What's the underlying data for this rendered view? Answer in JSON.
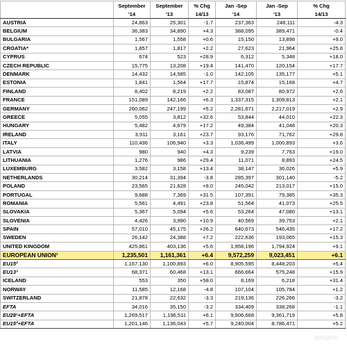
{
  "header": {
    "row1": [
      "",
      "September",
      "September",
      "% Chg",
      "Jan -Sep",
      "Jan -Sep",
      "% Chg"
    ],
    "row2": [
      "",
      "'14",
      "'13",
      "14/13",
      "'14",
      "'13",
      "14/13"
    ]
  },
  "rows": [
    {
      "name": "AUSTRIA",
      "sep14": "24,863",
      "sep13": "25,301",
      "chg": "-1.7",
      "ytd14": "237,363",
      "ytd13": "248,111",
      "ytdchg": "-4.3"
    },
    {
      "name": "BELGIUM",
      "sep14": "36,383",
      "sep13": "34,890",
      "chg": "+4.3",
      "ytd14": "388,095",
      "ytd13": "389,471",
      "ytdchg": "-0.4"
    },
    {
      "name": "BULGARIA",
      "sep14": "1,567",
      "sep13": "1,558",
      "chg": "+0.6",
      "ytd14": "15,150",
      "ytd13": "13,898",
      "ytdchg": "+9.0"
    },
    {
      "name": "CROATIA*",
      "sep14": "1,857",
      "sep13": "1,817",
      "chg": "+2.2",
      "ytd14": "27,623",
      "ytd13": "21,964",
      "ytdchg": "+25.8"
    },
    {
      "name": "CYPRUS",
      "sep14": "674",
      "sep13": "523",
      "chg": "+28.9",
      "ytd14": "6,312",
      "ytd13": "5,348",
      "ytdchg": "+18.0"
    },
    {
      "name": "CZECH REPUBLIC",
      "sep14": "15,775",
      "sep13": "13,208",
      "chg": "+19.4",
      "ytd14": "141,470",
      "ytd13": "120,154",
      "ytdchg": "+17.7"
    },
    {
      "name": "DENMARK",
      "sep14": "14,432",
      "sep13": "14,585",
      "chg": "-1.0",
      "ytd14": "142,105",
      "ytd13": "135,177",
      "ytdchg": "+5.1"
    },
    {
      "name": "ESTONIA",
      "sep14": "1,841",
      "sep13": "1,564",
      "chg": "+17.7",
      "ytd14": "15,874",
      "ytd13": "15,168",
      "ytdchg": "+4.7"
    },
    {
      "name": "FINLAND",
      "sep14": "8,402",
      "sep13": "8,219",
      "chg": "+2.2",
      "ytd14": "83,087",
      "ytd13": "80,972",
      "ytdchg": "+2.6"
    },
    {
      "name": "FRANCE",
      "sep14": "151,089",
      "sep13": "142,166",
      "chg": "+6.3",
      "ytd14": "1,337,315",
      "ytd13": "1,309,813",
      "ytdchg": "+2.1"
    },
    {
      "name": "GERMANY",
      "sep14": "260,062",
      "sep13": "247,199",
      "chg": "+5.2",
      "ytd14": "2,281,671",
      "ytd13": "2,217,019",
      "ytdchg": "+2.9"
    },
    {
      "name": "GREECE",
      "sep14": "5,055",
      "sep13": "3,812",
      "chg": "+32.6",
      "ytd14": "53,844",
      "ytd13": "44,010",
      "ytdchg": "+22.3"
    },
    {
      "name": "HUNGARY",
      "sep14": "5,482",
      "sep13": "4,679",
      "chg": "+17.2",
      "ytd14": "49,384",
      "ytd13": "41,048",
      "ytdchg": "+20.3"
    },
    {
      "name": "IRELAND",
      "sep14": "3,911",
      "sep13": "3,161",
      "chg": "+23.7",
      "ytd14": "93,176",
      "ytd13": "71,762",
      "ytdchg": "+29.8"
    },
    {
      "name": "ITALY",
      "sep14": "110,436",
      "sep13": "106,940",
      "chg": "+3.3",
      "ytd14": "1,036,499",
      "ytd13": "1,000,893",
      "ytdchg": "+3.6"
    },
    {
      "name": "LATVIA",
      "sep14": "980",
      "sep13": "940",
      "chg": "+4.3",
      "ytd14": "9,239",
      "ytd13": "7,763",
      "ytdchg": "+19.0"
    },
    {
      "name": "LITHUANIA",
      "sep14": "1,276",
      "sep13": "986",
      "chg": "+29.4",
      "ytd14": "11,071",
      "ytd13": "8,893",
      "ytdchg": "+24.5"
    },
    {
      "name": "LUXEMBURG",
      "sep14": "3,582",
      "sep13": "3,158",
      "chg": "+13.4",
      "ytd14": "38,147",
      "ytd13": "36,026",
      "ytdchg": "+5.9"
    },
    {
      "name": "NETHERLANDS",
      "sep14": "30,214",
      "sep13": "31,394",
      "chg": "-3.8",
      "ytd14": "285,397",
      "ytd13": "301,140",
      "ytdchg": "-5.2"
    },
    {
      "name": "POLAND",
      "sep14": "23,565",
      "sep13": "21,628",
      "chg": "+9.0",
      "ytd14": "245,042",
      "ytd13": "213,017",
      "ytdchg": "+15.0"
    },
    {
      "name": "PORTUGAL",
      "sep14": "9,688",
      "sep13": "7,369",
      "chg": "+31.5",
      "ytd14": "107,391",
      "ytd13": "79,385",
      "ytdchg": "+35.3"
    },
    {
      "name": "ROMANIA",
      "sep14": "5,561",
      "sep13": "4,491",
      "chg": "+23.8",
      "ytd14": "51,564",
      "ytd13": "41,073",
      "ytdchg": "+25.5"
    },
    {
      "name": "SLOVAKIA",
      "sep14": "5,367",
      "sep13": "5,094",
      "chg": "+5.6",
      "ytd14": "53,264",
      "ytd13": "47,080",
      "ytdchg": "+13.1"
    },
    {
      "name": "SLOVENIA",
      "sep14": "4,426",
      "sep13": "3,990",
      "chg": "+10.9",
      "ytd14": "40,569",
      "ytd13": "39,753",
      "ytdchg": "+2.1"
    },
    {
      "name": "SPAIN",
      "sep14": "57,010",
      "sep13": "45,175",
      "chg": "+26.2",
      "ytd14": "640,673",
      "ytd13": "546,435",
      "ytdchg": "+17.2"
    },
    {
      "name": "SWEDEN",
      "sep14": "26,142",
      "sep13": "24,388",
      "chg": "+7.2",
      "ytd14": "222,636",
      "ytd13": "193,065",
      "ytdchg": "+15.3"
    },
    {
      "name": "UNITED KINGDOM",
      "sep14": "425,861",
      "sep13": "403,136",
      "chg": "+5.6",
      "ytd14": "1,958,196",
      "ytd13": "1,794,924",
      "ytdchg": "+9.1"
    },
    {
      "name": "EUROPEAN UNION¹",
      "sep14": "1,235,501",
      "sep13": "1,161,361",
      "chg": "+6.4",
      "ytd14": "9,572,259",
      "ytd13": "9,023,451",
      "ytdchg": "+6.1",
      "style": "eu"
    },
    {
      "name": "EU15²",
      "sep14": "1,167,130",
      "sep13": "1,100,893",
      "chg": "+6.0",
      "ytd14": "8,905,595",
      "ytd13": "8,448,203",
      "ytdchg": "+5.4",
      "style": "agg"
    },
    {
      "name": "EU13³",
      "sep14": "68,371",
      "sep13": "60,468",
      "chg": "+13.1",
      "ytd14": "666,664",
      "ytd13": "575,248",
      "ytdchg": "+15.9",
      "style": "agg"
    },
    {
      "name": "ICELAND",
      "sep14": "553",
      "sep13": "350",
      "chg": "+58.0",
      "ytd14": "8,169",
      "ytd13": "6,218",
      "ytdchg": "+31.4",
      "style": "sep"
    },
    {
      "name": "NORWAY",
      "sep14": "11,585",
      "sep13": "12,168",
      "chg": "-4.8",
      "ytd14": "107,104",
      "ytd13": "105,784",
      "ytdchg": "+1.2"
    },
    {
      "name": "SWITZERLAND",
      "sep14": "21,878",
      "sep13": "22,632",
      "chg": "-3.3",
      "ytd14": "219,136",
      "ytd13": "226,266",
      "ytdchg": "-3.2"
    },
    {
      "name": "EFTA",
      "sep14": "34,016",
      "sep13": "35,150",
      "chg": "-3.2",
      "ytd14": "334,409",
      "ytd13": "338,268",
      "ytdchg": "-1.1",
      "style": "agg"
    },
    {
      "name": "EU28¹+EFTA",
      "sep14": "1,269,517",
      "sep13": "1,196,511",
      "chg": "+6.1",
      "ytd14": "9,906,668",
      "ytd13": "9,361,719",
      "ytdchg": "+5.8",
      "style": "agg"
    },
    {
      "name": "EU15²+EFTA",
      "sep14": "1,201,146",
      "sep13": "1,136,043",
      "chg": "+5.7",
      "ytd14": "9,240,004",
      "ytd13": "8,786,471",
      "ytdchg": "+5.2",
      "style": "agg"
    }
  ],
  "watermark": "gasgoo"
}
